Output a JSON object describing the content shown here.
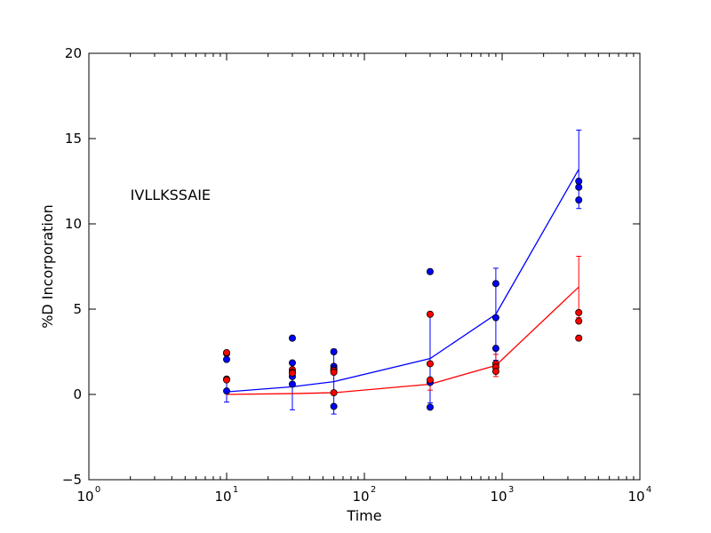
{
  "chart_data": {
    "type": "scatter",
    "title": "",
    "xlabel": "Time",
    "ylabel": "%D Incorporation",
    "x_scale": "log",
    "xlim": [
      1,
      10000
    ],
    "ylim": [
      -5,
      20
    ],
    "x_ticks": [
      {
        "value": 1,
        "base": "10",
        "exp": "0"
      },
      {
        "value": 10,
        "base": "10",
        "exp": "1"
      },
      {
        "value": 100,
        "base": "10",
        "exp": "2"
      },
      {
        "value": 1000,
        "base": "10",
        "exp": "3"
      },
      {
        "value": 10000,
        "base": "10",
        "exp": "4"
      }
    ],
    "y_ticks": [
      {
        "value": -5,
        "label": "−5"
      },
      {
        "value": 0,
        "label": "0"
      },
      {
        "value": 5,
        "label": "5"
      },
      {
        "value": 10,
        "label": "10"
      },
      {
        "value": 15,
        "label": "15"
      },
      {
        "value": 20,
        "label": "20"
      }
    ],
    "annotation": {
      "text": "IVLLKSSAIE",
      "x": 2,
      "y": 11.4
    },
    "grid": false,
    "series": [
      {
        "color": "#0000ff",
        "mean_line": [
          {
            "x": 10,
            "y": 0.15,
            "err": 0.6
          },
          {
            "x": 30,
            "y": 0.45,
            "err": 1.35
          },
          {
            "x": 60,
            "y": 0.75,
            "err": 1.9
          },
          {
            "x": 300,
            "y": 2.1,
            "err": 2.6
          },
          {
            "x": 900,
            "y": 4.7,
            "err": 2.7
          },
          {
            "x": 3600,
            "y": 13.2,
            "err": 2.3
          }
        ],
        "points": [
          {
            "x": 10,
            "y": 2.4
          },
          {
            "x": 10,
            "y": 2.05
          },
          {
            "x": 10,
            "y": 0.2
          },
          {
            "x": 30,
            "y": 3.3
          },
          {
            "x": 30,
            "y": 1.85
          },
          {
            "x": 30,
            "y": 1.05
          },
          {
            "x": 30,
            "y": 0.6
          },
          {
            "x": 60,
            "y": 2.5
          },
          {
            "x": 60,
            "y": 1.65
          },
          {
            "x": 60,
            "y": 1.5
          },
          {
            "x": 60,
            "y": -0.7
          },
          {
            "x": 300,
            "y": 7.2
          },
          {
            "x": 300,
            "y": 0.7
          },
          {
            "x": 300,
            "y": -0.75
          },
          {
            "x": 900,
            "y": 6.5
          },
          {
            "x": 900,
            "y": 4.5
          },
          {
            "x": 900,
            "y": 2.7
          },
          {
            "x": 3600,
            "y": 12.5
          },
          {
            "x": 3600,
            "y": 12.15
          },
          {
            "x": 3600,
            "y": 11.4
          }
        ]
      },
      {
        "color": "#ff0000",
        "mean_line": [
          {
            "x": 10,
            "y": 0.0,
            "err": 0.0
          },
          {
            "x": 30,
            "y": 0.05,
            "err": 0.0
          },
          {
            "x": 60,
            "y": 0.1,
            "err": 0.0
          },
          {
            "x": 300,
            "y": 0.6,
            "err": 0.35
          },
          {
            "x": 900,
            "y": 1.7,
            "err": 0.65
          },
          {
            "x": 3600,
            "y": 6.3,
            "err": 1.8
          }
        ],
        "points": [
          {
            "x": 10,
            "y": 2.45
          },
          {
            "x": 10,
            "y": 0.9
          },
          {
            "x": 10,
            "y": 0.85
          },
          {
            "x": 30,
            "y": 1.45
          },
          {
            "x": 30,
            "y": 1.3
          },
          {
            "x": 30,
            "y": 1.25
          },
          {
            "x": 60,
            "y": 1.4
          },
          {
            "x": 60,
            "y": 1.3
          },
          {
            "x": 60,
            "y": 0.1
          },
          {
            "x": 300,
            "y": 4.7
          },
          {
            "x": 300,
            "y": 1.8
          },
          {
            "x": 300,
            "y": 0.85
          },
          {
            "x": 900,
            "y": 1.8
          },
          {
            "x": 900,
            "y": 1.6
          },
          {
            "x": 900,
            "y": 1.35
          },
          {
            "x": 3600,
            "y": 4.8
          },
          {
            "x": 3600,
            "y": 4.3
          },
          {
            "x": 3600,
            "y": 3.3
          }
        ]
      }
    ]
  }
}
